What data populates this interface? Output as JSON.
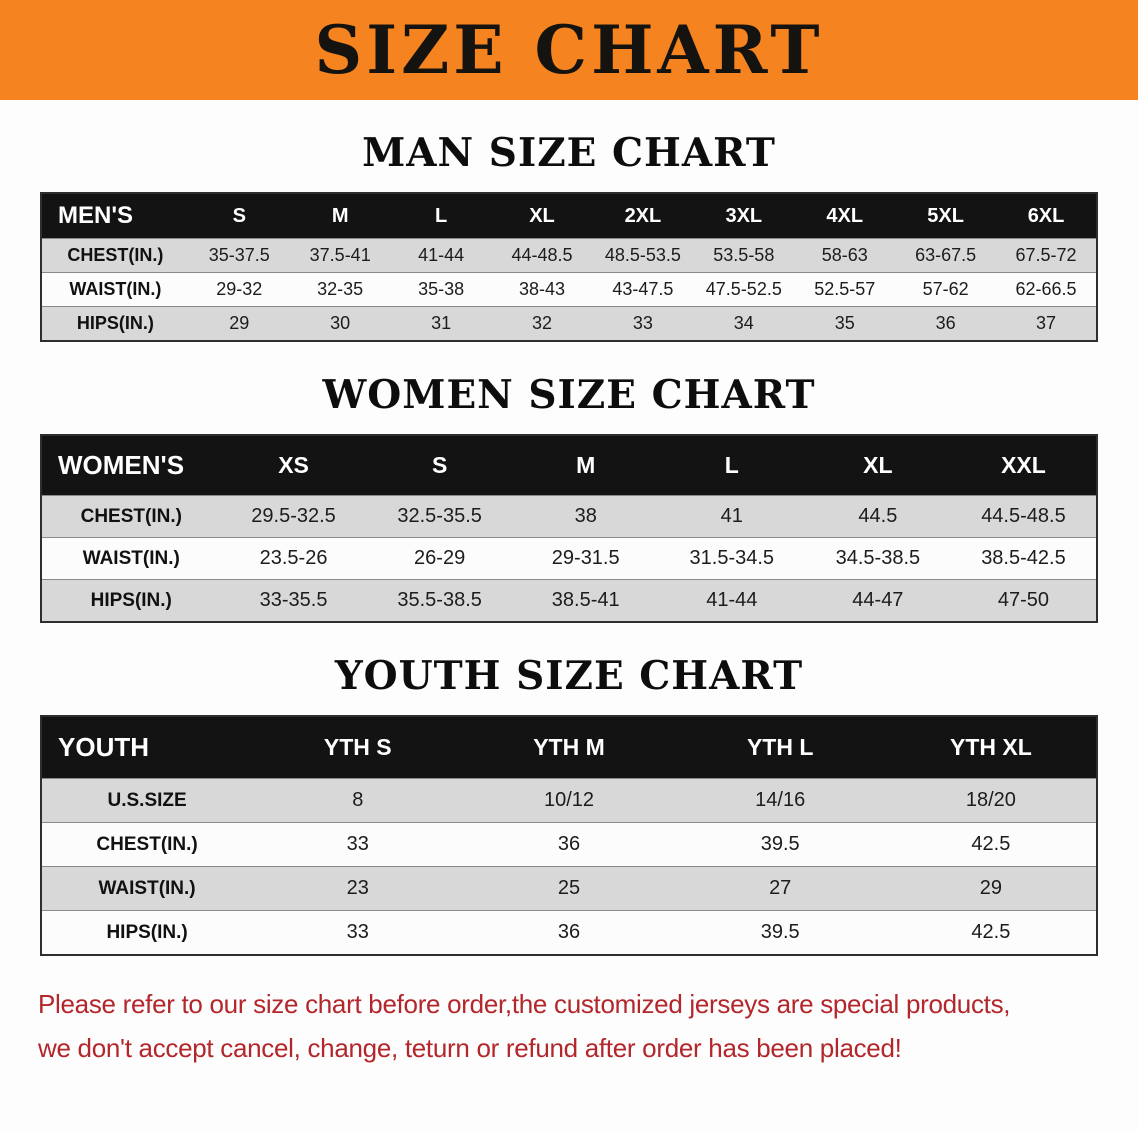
{
  "banner": {
    "title": "SIZE CHART",
    "bg_color": "#f5831f",
    "text_color": "#151310"
  },
  "chart_data": [
    {
      "type": "table",
      "heading": "MAN SIZE CHART",
      "header": [
        "MEN'S",
        "S",
        "M",
        "L",
        "XL",
        "2XL",
        "3XL",
        "4XL",
        "5XL",
        "6XL"
      ],
      "rows": [
        [
          "CHEST(IN.)",
          "35-37.5",
          "37.5-41",
          "41-44",
          "44-48.5",
          "48.5-53.5",
          "53.5-58",
          "58-63",
          "63-67.5",
          "67.5-72"
        ],
        [
          "WAIST(IN.)",
          "29-32",
          "32-35",
          "35-38",
          "38-43",
          "43-47.5",
          "47.5-52.5",
          "52.5-57",
          "57-62",
          "62-66.5"
        ],
        [
          "HIPS(IN.)",
          "29",
          "30",
          "31",
          "32",
          "33",
          "34",
          "35",
          "36",
          "37"
        ]
      ]
    },
    {
      "type": "table",
      "heading": "WOMEN SIZE CHART",
      "header": [
        "WOMEN'S",
        "XS",
        "S",
        "M",
        "L",
        "XL",
        "XXL"
      ],
      "rows": [
        [
          "CHEST(IN.)",
          "29.5-32.5",
          "32.5-35.5",
          "38",
          "41",
          "44.5",
          "44.5-48.5"
        ],
        [
          "WAIST(IN.)",
          "23.5-26",
          "26-29",
          "29-31.5",
          "31.5-34.5",
          "34.5-38.5",
          "38.5-42.5"
        ],
        [
          "HIPS(IN.)",
          "33-35.5",
          "35.5-38.5",
          "38.5-41",
          "41-44",
          "44-47",
          "47-50"
        ]
      ]
    },
    {
      "type": "table",
      "heading": "YOUTH SIZE CHART",
      "header": [
        "YOUTH",
        "YTH S",
        "YTH M",
        "YTH L",
        "YTH XL"
      ],
      "rows": [
        [
          "U.S.SIZE",
          "8",
          "10/12",
          "14/16",
          "18/20"
        ],
        [
          "CHEST(IN.)",
          "33",
          "36",
          "39.5",
          "42.5"
        ],
        [
          "WAIST(IN.)",
          "23",
          "25",
          "27",
          "29"
        ],
        [
          "HIPS(IN.)",
          "33",
          "36",
          "39.5",
          "42.5"
        ]
      ]
    }
  ],
  "footer": {
    "line1": "Please refer to our size chart before order,the customized jerseys are special products,",
    "line2": "we don't accept cancel, change, teturn or refund after order has been placed!",
    "text_color": "#b3262b"
  }
}
